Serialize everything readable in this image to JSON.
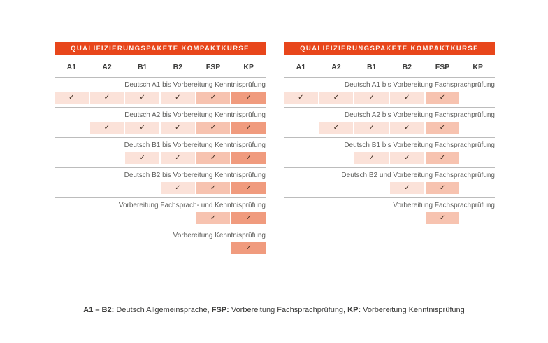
{
  "colors": {
    "header_bg": "#e8461b",
    "header_text": "#fdf2ec",
    "cell_light": "#fbe2d9",
    "cell_medium": "#f7c3b0",
    "cell_dark": "#f09b7e",
    "check": "#3e2c20",
    "label_text": "#5e5e5c",
    "col_header_text": "#3c3c3b",
    "divider": "#bcbcbc"
  },
  "check_glyph": "✓",
  "columns": [
    "A1",
    "A2",
    "B1",
    "B2",
    "FSP",
    "KP"
  ],
  "column_shades": [
    "light",
    "light",
    "light",
    "light",
    "medium",
    "dark"
  ],
  "tables": [
    {
      "title": "QUALIFIZIERUNGSPAKETE KOMPAKTKURSE",
      "rows": [
        {
          "label": "Deutsch A1 bis Vorbereitung Kenntnisprüfung",
          "checks": [
            true,
            true,
            true,
            true,
            true,
            true
          ]
        },
        {
          "label": "Deutsch A2 bis Vorbereitung Kenntnisprüfung",
          "checks": [
            false,
            true,
            true,
            true,
            true,
            true
          ]
        },
        {
          "label": "Deutsch B1 bis Vorbereitung Kenntnisprüfung",
          "checks": [
            false,
            false,
            true,
            true,
            true,
            true
          ]
        },
        {
          "label": "Deutsch B2 bis Vorbereitung Kenntnisprüfung",
          "checks": [
            false,
            false,
            false,
            true,
            true,
            true
          ]
        },
        {
          "label": "Vorbereitung Fachsprach- und Kenntnisprüfung",
          "checks": [
            false,
            false,
            false,
            false,
            true,
            true
          ]
        },
        {
          "label": "Vorbereitung Kenntnisprüfung",
          "checks": [
            false,
            false,
            false,
            false,
            false,
            true
          ]
        }
      ]
    },
    {
      "title": "QUALIFIZIERUNGSPAKETE KOMPAKTKURSE",
      "rows": [
        {
          "label": "Deutsch A1 bis Vorbereitung Fachsprachprüfung",
          "checks": [
            true,
            true,
            true,
            true,
            true,
            false
          ]
        },
        {
          "label": "Deutsch A2 bis Vorbereitung Fachsprachprüfung",
          "checks": [
            false,
            true,
            true,
            true,
            true,
            false
          ]
        },
        {
          "label": "Deutsch B1 bis Vorbereitung Fachsprachprüfung",
          "checks": [
            false,
            false,
            true,
            true,
            true,
            false
          ]
        },
        {
          "label": "Deutsch B2 und Vorbereitung Fachsprachprüfung",
          "checks": [
            false,
            false,
            false,
            true,
            true,
            false
          ]
        },
        {
          "label": "Vorbereitung Fachsprachprüfung",
          "checks": [
            false,
            false,
            false,
            false,
            true,
            false
          ]
        }
      ]
    }
  ],
  "legend": {
    "parts": [
      {
        "bold": "A1 – B2:",
        "text": " Deutsch Allgemeinsprache, "
      },
      {
        "bold": "FSP:",
        "text": " Vorbereitung Fachsprachprüfung, "
      },
      {
        "bold": "KP:",
        "text": " Vorbereitung Kenntnisprüfung"
      }
    ]
  }
}
